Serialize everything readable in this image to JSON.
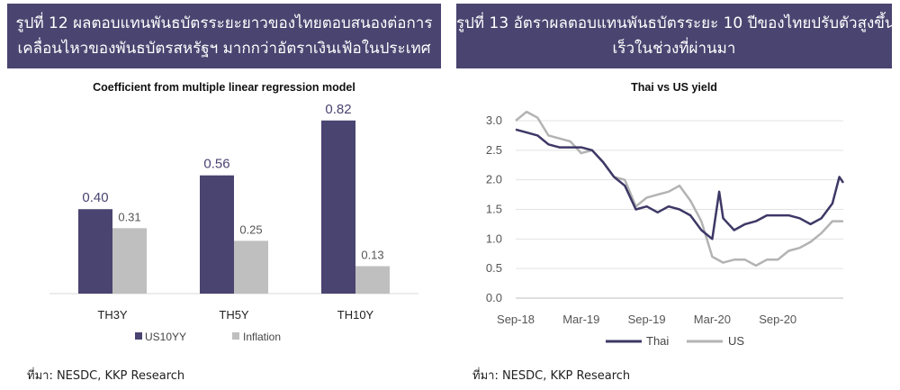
{
  "left_panel": {
    "banner_line1": "รูปที่ 12 ผลตอบแทนพันธบัตรระยะยาวของไทยตอบสนองต่อการ",
    "banner_line2": "เคลื่อนไหวของพันธบัตรสหรัฐฯ มากกว่าอัตราเงินเฟ้อในประเทศ",
    "source": "ที่มา: NESDC, KKP Research",
    "colors": {
      "banner": "#4a4470",
      "US10YY": "#4a4470",
      "Inflation": "#bfbfbf"
    }
  },
  "right_panel": {
    "banner_line1": "รูปที่ 13 อัตราผลตอบแทนพันธบัตรระยะ 10 ปีของไทยปรับตัวสูงขึ้น",
    "banner_line2": "เร็วในช่วงที่ผ่านมา",
    "source": "ที่มา: NESDC, KKP Research",
    "colors": {
      "banner": "#4a4470",
      "Thai": "#3d3866",
      "US": "#b3b3b3"
    }
  },
  "chart_data": [
    {
      "type": "bar",
      "title": "Coefficient from multiple linear regression model",
      "categories": [
        "TH3Y",
        "TH5Y",
        "TH10Y"
      ],
      "series": [
        {
          "name": "US10YY",
          "values": [
            0.4,
            0.56,
            0.82
          ],
          "labels": [
            "0.40",
            "0.56",
            "0.82"
          ]
        },
        {
          "name": "Inflation",
          "values": [
            0.31,
            0.25,
            0.13
          ],
          "labels": [
            "0.31",
            "0.25",
            "0.13"
          ]
        }
      ],
      "ylim": [
        0,
        0.9
      ],
      "legend": "bottom",
      "grid": false
    },
    {
      "type": "line",
      "title": "Thai vs US yield",
      "x_ticks": [
        "Sep-18",
        "Mar-19",
        "Sep-19",
        "Mar-20",
        "Sep-20"
      ],
      "y_ticks": [
        "0.0",
        "0.5",
        "1.0",
        "1.5",
        "2.0",
        "2.5",
        "3.0"
      ],
      "ylim": [
        0,
        3.0
      ],
      "xlim": [
        "2018-09",
        "2021-03"
      ],
      "grid": true,
      "legend": "bottom",
      "series": [
        {
          "name": "Thai",
          "points": [
            [
              "2018-09",
              2.85
            ],
            [
              "2018-10",
              2.8
            ],
            [
              "2018-11",
              2.75
            ],
            [
              "2018-12",
              2.6
            ],
            [
              "2019-01",
              2.55
            ],
            [
              "2019-02",
              2.55
            ],
            [
              "2019-03",
              2.55
            ],
            [
              "2019-04",
              2.5
            ],
            [
              "2019-05",
              2.3
            ],
            [
              "2019-06",
              2.05
            ],
            [
              "2019-07",
              1.9
            ],
            [
              "2019-08",
              1.5
            ],
            [
              "2019-09",
              1.55
            ],
            [
              "2019-10",
              1.45
            ],
            [
              "2019-11",
              1.55
            ],
            [
              "2019-12",
              1.5
            ],
            [
              "2020-01",
              1.4
            ],
            [
              "2020-02",
              1.15
            ],
            [
              "2020-03",
              1.0
            ],
            [
              "2020-03-20",
              1.8
            ],
            [
              "2020-04",
              1.35
            ],
            [
              "2020-05",
              1.15
            ],
            [
              "2020-06",
              1.25
            ],
            [
              "2020-07",
              1.3
            ],
            [
              "2020-08",
              1.4
            ],
            [
              "2020-09",
              1.4
            ],
            [
              "2020-10",
              1.4
            ],
            [
              "2020-11",
              1.35
            ],
            [
              "2020-12",
              1.25
            ],
            [
              "2021-01",
              1.35
            ],
            [
              "2021-02",
              1.6
            ],
            [
              "2021-02-20",
              2.05
            ],
            [
              "2021-03",
              1.95
            ]
          ]
        },
        {
          "name": "US",
          "points": [
            [
              "2018-09",
              3.0
            ],
            [
              "2018-10",
              3.15
            ],
            [
              "2018-11",
              3.05
            ],
            [
              "2018-12",
              2.75
            ],
            [
              "2019-01",
              2.7
            ],
            [
              "2019-02",
              2.65
            ],
            [
              "2019-03",
              2.45
            ],
            [
              "2019-04",
              2.5
            ],
            [
              "2019-05",
              2.3
            ],
            [
              "2019-06",
              2.05
            ],
            [
              "2019-07",
              2.0
            ],
            [
              "2019-08",
              1.55
            ],
            [
              "2019-09",
              1.7
            ],
            [
              "2019-10",
              1.75
            ],
            [
              "2019-11",
              1.8
            ],
            [
              "2019-12",
              1.9
            ],
            [
              "2020-01",
              1.65
            ],
            [
              "2020-02",
              1.3
            ],
            [
              "2020-03",
              0.7
            ],
            [
              "2020-04",
              0.6
            ],
            [
              "2020-05",
              0.65
            ],
            [
              "2020-06",
              0.65
            ],
            [
              "2020-07",
              0.55
            ],
            [
              "2020-08",
              0.65
            ],
            [
              "2020-09",
              0.65
            ],
            [
              "2020-10",
              0.8
            ],
            [
              "2020-11",
              0.85
            ],
            [
              "2020-12",
              0.95
            ],
            [
              "2021-01",
              1.1
            ],
            [
              "2021-02",
              1.3
            ],
            [
              "2021-03",
              1.3
            ]
          ]
        }
      ]
    }
  ]
}
